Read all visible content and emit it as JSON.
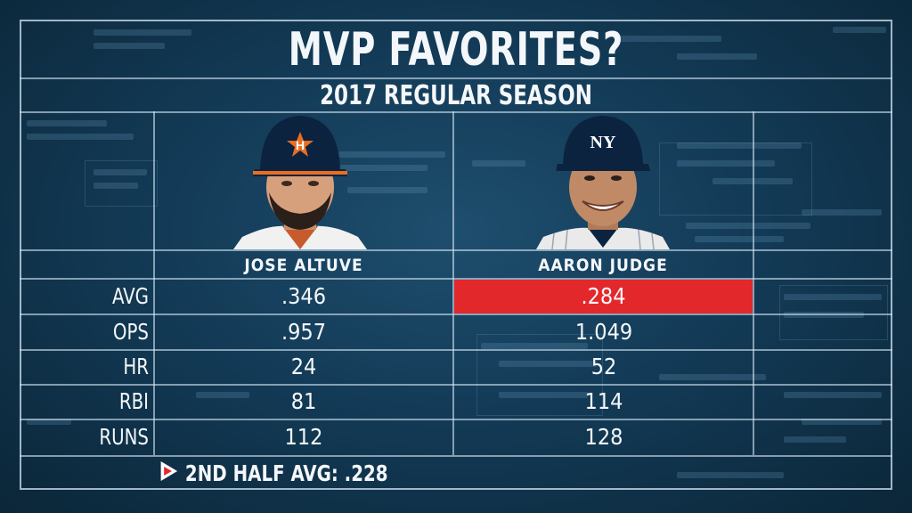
{
  "title": "MVP FAVORITES?",
  "subtitle": "2017 REGULAR SEASON",
  "players": [
    {
      "name": "JOSE ALTUVE",
      "cap_logo": "H",
      "cap_color": "#0c2340",
      "logo_color": "#eb6e1f"
    },
    {
      "name": "AARON JUDGE",
      "cap_logo": "NY",
      "cap_color": "#0c2340",
      "logo_color": "#ffffff"
    }
  ],
  "stats": [
    {
      "label": "AVG",
      "p1": ".346",
      "p2": ".284"
    },
    {
      "label": "OPS",
      "p1": ".957",
      "p2": "1.049"
    },
    {
      "label": "HR",
      "p1": "24",
      "p2": "52"
    },
    {
      "label": "RBI",
      "p1": "81",
      "p2": "114"
    },
    {
      "label": "RUNS",
      "p1": "112",
      "p2": "128"
    }
  ],
  "footer": {
    "icon": "play-triangle-icon",
    "text": "2ND HALF AVG: .228"
  },
  "colors": {
    "highlight": "#e3282b",
    "background": "#133b57"
  }
}
